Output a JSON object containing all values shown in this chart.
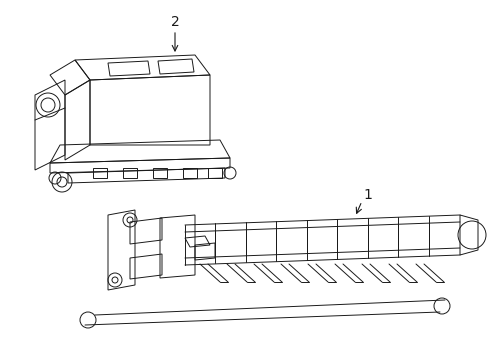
{
  "bg_color": "#ffffff",
  "line_color": "#1a1a1a",
  "fig_width": 4.89,
  "fig_height": 3.6,
  "dpi": 100,
  "label1": "1",
  "label2": "2"
}
